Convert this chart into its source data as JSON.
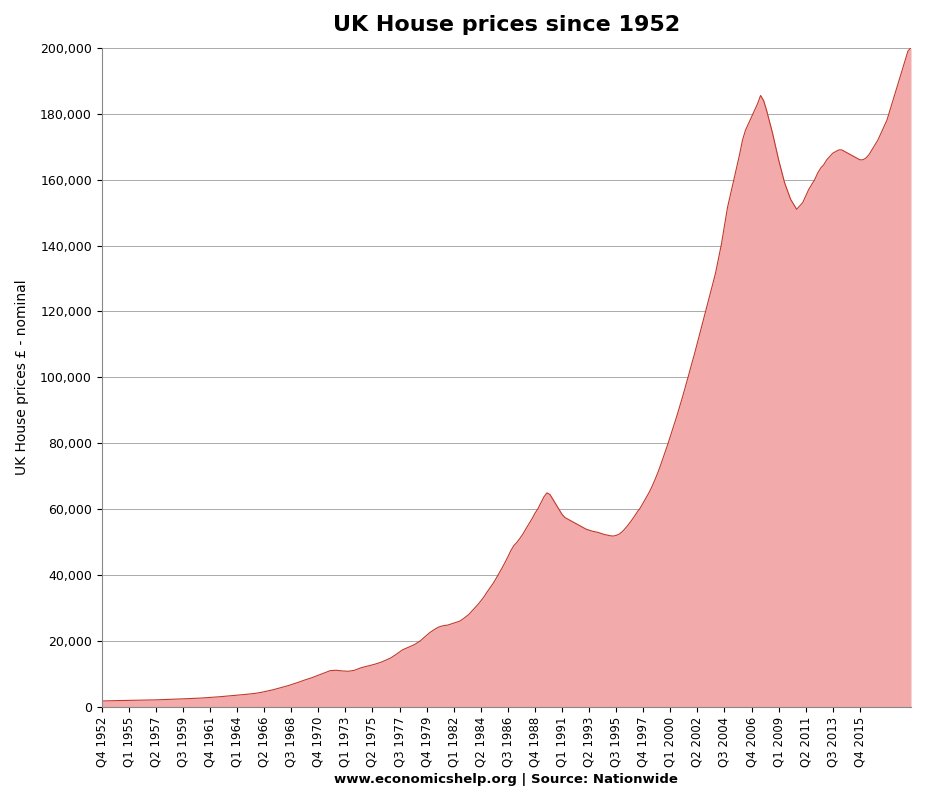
{
  "title": "UK House prices since 1952",
  "ylabel": "UK House prices £ - nominal",
  "xlabel": "www.economicshelp.org | Source: Nationwide",
  "fill_color": "#f2aaaa",
  "line_color": "#c0392b",
  "background_color": "#ffffff",
  "ylim": [
    0,
    200000
  ],
  "yticks": [
    0,
    20000,
    40000,
    60000,
    80000,
    100000,
    120000,
    140000,
    160000,
    180000,
    200000
  ],
  "tick_labels": [
    "Q4 1952",
    "Q1 1955",
    "Q2 1957",
    "Q3 1959",
    "Q4 1961",
    "Q1 1964",
    "Q2 1966",
    "Q3 1968",
    "Q4 1970",
    "Q1 1973",
    "Q2 1975",
    "Q3 1977",
    "Q4 1979",
    "Q1 1982",
    "Q2 1984",
    "Q3 1986",
    "Q4 1988",
    "Q1 1991",
    "Q2 1993",
    "Q3 1995",
    "Q4 1997",
    "Q1 2000",
    "Q2 2002",
    "Q3 2004",
    "Q4 2006",
    "Q1 2009",
    "Q2 2011",
    "Q3 2013",
    "Q4 2015"
  ],
  "values": [
    1891,
    1919,
    1935,
    1965,
    1986,
    2006,
    2021,
    2034,
    2048,
    2063,
    2077,
    2091,
    2105,
    2130,
    2156,
    2182,
    2196,
    2210,
    2230,
    2261,
    2290,
    2320,
    2356,
    2392,
    2428,
    2464,
    2500,
    2536,
    2572,
    2608,
    2644,
    2680,
    2720,
    2780,
    2840,
    2900,
    2950,
    3000,
    3080,
    3160,
    3240,
    3320,
    3400,
    3480,
    3560,
    3640,
    3720,
    3800,
    3900,
    4000,
    4100,
    4200,
    4350,
    4500,
    4700,
    4900,
    5100,
    5300,
    5550,
    5800,
    6050,
    6300,
    6550,
    6850,
    7150,
    7450,
    7750,
    8100,
    8400,
    8700,
    9000,
    9350,
    9700,
    10050,
    10400,
    10750,
    11100,
    11150,
    11200,
    11100,
    11000,
    10950,
    10900,
    11050,
    11200,
    11550,
    11900,
    12150,
    12400,
    12600,
    12850,
    13100,
    13400,
    13700,
    14100,
    14500,
    14900,
    15500,
    16100,
    16750,
    17400,
    17800,
    18200,
    18600,
    19000,
    19600,
    20200,
    21000,
    21800,
    22600,
    23200,
    23800,
    24300,
    24600,
    24800,
    24900,
    25200,
    25500,
    25800,
    26100,
    26700,
    27400,
    28100,
    29100,
    30100,
    31100,
    32200,
    33400,
    34800,
    36100,
    37400,
    38900,
    40500,
    42100,
    43800,
    45600,
    47500,
    49000,
    50000,
    51200,
    52500,
    54100,
    55600,
    57100,
    58800,
    60200,
    62000,
    63800,
    65000,
    64500,
    63000,
    61500,
    60000,
    58500,
    57500,
    57000,
    56500,
    56000,
    55500,
    55000,
    54500,
    54000,
    53700,
    53400,
    53200,
    53000,
    52700,
    52400,
    52200,
    52000,
    51900,
    52100,
    52500,
    53200,
    54200,
    55300,
    56500,
    57800,
    59200,
    60400,
    62000,
    63600,
    65200,
    67100,
    69200,
    71500,
    74000,
    76600,
    79300,
    82100,
    84900,
    87800,
    90800,
    93900,
    97100,
    100400,
    103800,
    107000,
    110500,
    114000,
    117500,
    121000,
    124500,
    128000,
    131500,
    136000,
    140500,
    146000,
    151500,
    155500,
    159500,
    163500,
    167500,
    172000,
    175000,
    177000,
    179000,
    181000,
    183000,
    185500,
    184000,
    181000,
    177500,
    174000,
    170000,
    166000,
    162500,
    159000,
    156500,
    154000,
    152500,
    151000,
    152000,
    153000,
    155000,
    157000,
    158500,
    160000,
    162000,
    163500,
    164500,
    166000,
    167000,
    168000,
    168500,
    169000,
    169000,
    168500,
    168000,
    167500,
    167000,
    166500,
    166000,
    166000,
    166500,
    167500,
    169000,
    170500,
    172000,
    174000,
    176000,
    178000,
    181000,
    184000,
    187000,
    190000,
    193000,
    196000,
    199000,
    200000
  ]
}
